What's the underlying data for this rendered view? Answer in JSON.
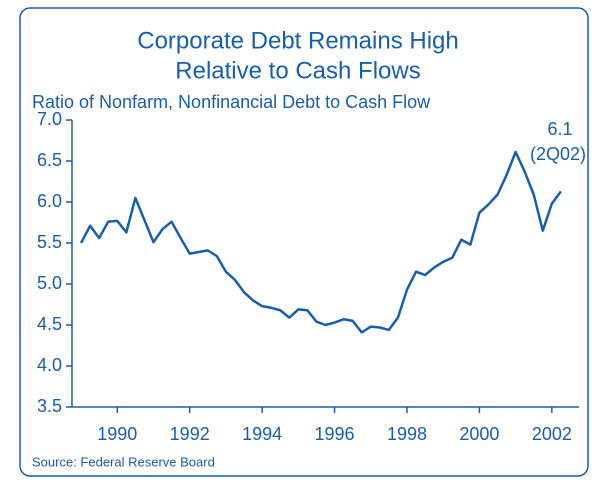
{
  "chart_data": {
    "type": "line",
    "title": [
      "Corporate Debt Remains High",
      "Relative to Cash Flows"
    ],
    "y_axis_label": "Ratio of Nonfarm, Nonfinancial Debt to Cash Flow",
    "annotation": [
      "6.1",
      "(2Q02)"
    ],
    "source": "Source: Federal Reserve Board",
    "x": [
      1989.0,
      1989.25,
      1989.5,
      1989.75,
      1990.0,
      1990.25,
      1990.5,
      1990.75,
      1991.0,
      1991.25,
      1991.5,
      1991.75,
      1992.0,
      1992.25,
      1992.5,
      1992.75,
      1993.0,
      1993.25,
      1993.5,
      1993.75,
      1994.0,
      1994.25,
      1994.5,
      1994.75,
      1995.0,
      1995.25,
      1995.5,
      1995.75,
      1996.0,
      1996.25,
      1996.5,
      1996.75,
      1997.0,
      1997.25,
      1997.5,
      1997.75,
      1998.0,
      1998.25,
      1998.5,
      1998.75,
      1999.0,
      1999.25,
      1999.5,
      1999.75,
      2000.0,
      2000.25,
      2000.5,
      2000.75,
      2001.0,
      2001.25,
      2001.5,
      2001.75,
      2002.0,
      2002.25
    ],
    "series": [
      {
        "name": "Debt to Cash Flow",
        "color": "#1a5ea8",
        "values": [
          5.5,
          5.71,
          5.56,
          5.76,
          5.77,
          5.63,
          6.05,
          5.78,
          5.51,
          5.67,
          5.76,
          5.56,
          5.37,
          5.39,
          5.41,
          5.34,
          5.15,
          5.05,
          4.9,
          4.8,
          4.73,
          4.71,
          4.68,
          4.59,
          4.69,
          4.68,
          4.54,
          4.5,
          4.53,
          4.57,
          4.55,
          4.41,
          4.48,
          4.47,
          4.44,
          4.59,
          4.93,
          5.15,
          5.11,
          5.2,
          5.27,
          5.32,
          5.54,
          5.48,
          5.87,
          5.97,
          6.09,
          6.33,
          6.61,
          6.37,
          6.09,
          5.65,
          5.98,
          6.13
        ]
      }
    ],
    "xlim": [
      1988.75,
      2002.75
    ],
    "xticks": [
      1990,
      1992,
      1994,
      1996,
      1998,
      2000,
      2002
    ],
    "ylim": [
      3.5,
      7.0
    ],
    "yticks": [
      {
        "value": 3.5,
        "label": "3.5"
      },
      {
        "value": 4.0,
        "label": "4.0"
      },
      {
        "value": 4.5,
        "label": "4.5"
      },
      {
        "value": 5.0,
        "label": "5.0"
      },
      {
        "value": 5.5,
        "label": "5.5"
      },
      {
        "value": 6.0,
        "label": "6.0"
      },
      {
        "value": 6.5,
        "label": "6.5"
      },
      {
        "value": 7.0,
        "label": "7.0"
      }
    ]
  }
}
